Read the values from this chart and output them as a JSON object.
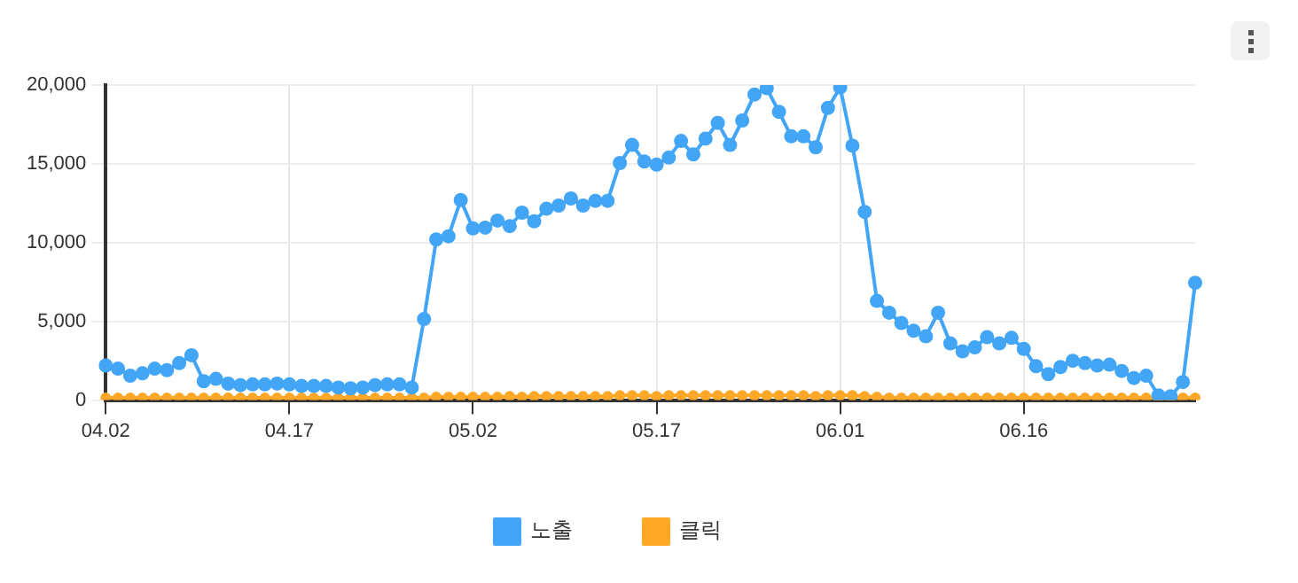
{
  "chart_data": {
    "type": "line",
    "categories": [
      "04.02",
      null,
      null,
      null,
      null,
      null,
      null,
      null,
      null,
      null,
      null,
      null,
      null,
      null,
      null,
      "04.17",
      null,
      null,
      null,
      null,
      null,
      null,
      null,
      null,
      null,
      null,
      null,
      null,
      null,
      null,
      "05.02",
      null,
      null,
      null,
      null,
      null,
      null,
      null,
      null,
      null,
      null,
      null,
      null,
      null,
      null,
      "05.17",
      null,
      null,
      null,
      null,
      null,
      null,
      null,
      null,
      null,
      null,
      null,
      null,
      null,
      null,
      "06.01",
      null,
      null,
      null,
      null,
      null,
      null,
      null,
      null,
      null,
      null,
      null,
      null,
      null,
      null,
      "06.16",
      null,
      null,
      null,
      null,
      null,
      null,
      null,
      null,
      null,
      null,
      null,
      null,
      null,
      null
    ],
    "series": [
      {
        "name": "노출",
        "color": "#42a5f5",
        "values": [
          2200,
          2000,
          1550,
          1700,
          2000,
          1900,
          2350,
          2850,
          1200,
          1350,
          1050,
          950,
          1000,
          1000,
          1050,
          1000,
          900,
          900,
          900,
          800,
          750,
          800,
          950,
          1000,
          1000,
          800,
          5150,
          10200,
          10400,
          12700,
          10900,
          10950,
          11400,
          11050,
          11900,
          11350,
          12150,
          12350,
          12800,
          12350,
          12650,
          12650,
          15050,
          16200,
          15150,
          14950,
          15400,
          16450,
          15600,
          16600,
          17600,
          16200,
          17750,
          19400,
          19800,
          18300,
          16750,
          16750,
          16050,
          18550,
          19850,
          16150,
          11950,
          6300,
          5550,
          4900,
          4400,
          4050,
          5550,
          3600,
          3100,
          3350,
          4000,
          3600,
          3950,
          3250,
          2150,
          1650,
          2100,
          2500,
          2350,
          2200,
          2250,
          1850,
          1400,
          1550,
          300,
          250,
          1150,
          7450
        ]
      },
      {
        "name": "클릭",
        "color": "#ffa726",
        "values": [
          150,
          150,
          150,
          150,
          150,
          150,
          150,
          150,
          150,
          150,
          150,
          150,
          150,
          150,
          150,
          150,
          150,
          150,
          150,
          150,
          150,
          150,
          150,
          150,
          150,
          150,
          150,
          200,
          200,
          200,
          200,
          200,
          200,
          250,
          200,
          250,
          250,
          250,
          250,
          250,
          250,
          250,
          300,
          300,
          300,
          250,
          300,
          300,
          300,
          300,
          300,
          300,
          300,
          300,
          300,
          300,
          300,
          300,
          250,
          300,
          300,
          300,
          250,
          200,
          150,
          150,
          150,
          150,
          150,
          150,
          150,
          150,
          150,
          150,
          150,
          150,
          150,
          150,
          150,
          150,
          150,
          150,
          150,
          150,
          150,
          150,
          100,
          100,
          150,
          150
        ]
      }
    ],
    "ylim": [
      0,
      20000
    ],
    "yticks": [
      {
        "value": 0,
        "label": "0"
      },
      {
        "value": 5000,
        "label": "5,000"
      },
      {
        "value": 10000,
        "label": "10,000"
      },
      {
        "value": 15000,
        "label": "15,000"
      },
      {
        "value": 20000,
        "label": "20,000"
      }
    ],
    "grid": true,
    "legend": "bottom",
    "marker": "circle",
    "line_style": "solid"
  }
}
